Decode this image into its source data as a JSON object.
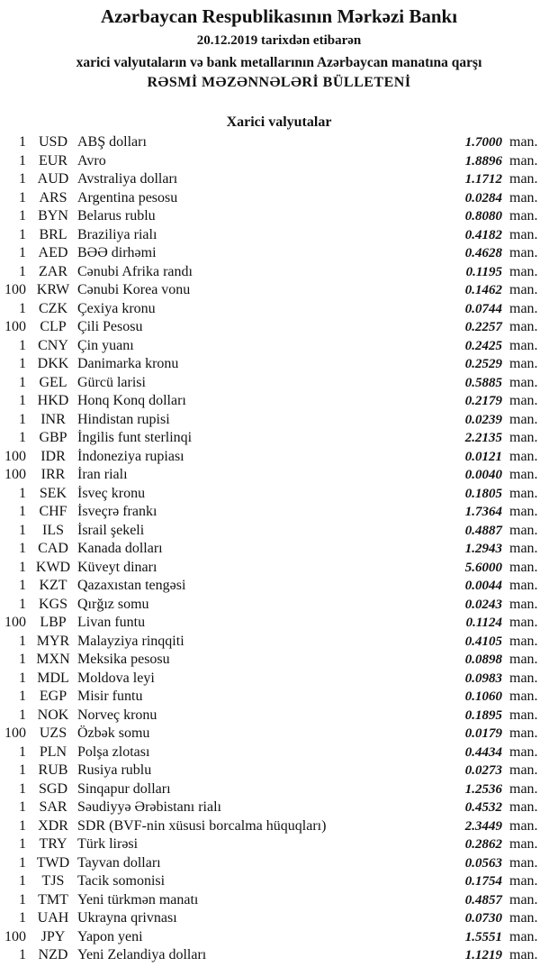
{
  "header": {
    "title": "Azərbaycan Respublikasının Mərkəzi Bankı",
    "date_line": "20.12.2019  tarixdən etibarən",
    "subtitle": "xarici valyutaların və bank metallarının Azərbaycan manatına qarşı",
    "bulletin": "RƏSMİ MƏZƏNNƏLƏRİ BÜLLETENİ"
  },
  "section": {
    "title": "Xarici valyutalar",
    "unit": "man.",
    "rows": [
      {
        "qty": "1",
        "code": "USD",
        "name": "ABŞ dolları",
        "rate": "1.7000"
      },
      {
        "qty": "1",
        "code": "EUR",
        "name": "Avro",
        "rate": "1.8896"
      },
      {
        "qty": "1",
        "code": "AUD",
        "name": "Avstraliya dolları",
        "rate": "1.1712"
      },
      {
        "qty": "1",
        "code": "ARS",
        "name": "Argentina pesosu",
        "rate": "0.0284"
      },
      {
        "qty": "1",
        "code": "BYN",
        "name": "Belarus rublu",
        "rate": "0.8080"
      },
      {
        "qty": "1",
        "code": "BRL",
        "name": "Braziliya rialı",
        "rate": "0.4182"
      },
      {
        "qty": "1",
        "code": "AED",
        "name": "BƏƏ dirhəmi",
        "rate": "0.4628"
      },
      {
        "qty": "1",
        "code": "ZAR",
        "name": "Cənubi Afrika randı",
        "rate": "0.1195"
      },
      {
        "qty": "100",
        "code": "KRW",
        "name": "Cənubi Korea vonu",
        "rate": "0.1462"
      },
      {
        "qty": "1",
        "code": "CZK",
        "name": "Çexiya kronu",
        "rate": "0.0744"
      },
      {
        "qty": "100",
        "code": "CLP",
        "name": "Çili Pesosu",
        "rate": "0.2257"
      },
      {
        "qty": "1",
        "code": "CNY",
        "name": "Çin yuanı",
        "rate": "0.2425"
      },
      {
        "qty": "1",
        "code": "DKK",
        "name": "Danimarka kronu",
        "rate": "0.2529"
      },
      {
        "qty": "1",
        "code": "GEL",
        "name": "Gürcü larisi",
        "rate": "0.5885"
      },
      {
        "qty": "1",
        "code": "HKD",
        "name": "Honq Konq dolları",
        "rate": "0.2179"
      },
      {
        "qty": "1",
        "code": "INR",
        "name": "Hindistan rupisi",
        "rate": "0.0239"
      },
      {
        "qty": "1",
        "code": "GBP",
        "name": "İngilis funt sterlinqi",
        "rate": "2.2135"
      },
      {
        "qty": "100",
        "code": "IDR",
        "name": "İndoneziya rupiası",
        "rate": "0.0121"
      },
      {
        "qty": "100",
        "code": "IRR",
        "name": "İran rialı",
        "rate": "0.0040"
      },
      {
        "qty": "1",
        "code": "SEK",
        "name": "İsveç kronu",
        "rate": "0.1805"
      },
      {
        "qty": "1",
        "code": "CHF",
        "name": "İsveçrə frankı",
        "rate": "1.7364"
      },
      {
        "qty": "1",
        "code": "ILS",
        "name": "İsrail şekeli",
        "rate": "0.4887"
      },
      {
        "qty": "1",
        "code": "CAD",
        "name": "Kanada dolları",
        "rate": "1.2943"
      },
      {
        "qty": "1",
        "code": "KWD",
        "name": "Küveyt dinarı",
        "rate": "5.6000"
      },
      {
        "qty": "1",
        "code": "KZT",
        "name": "Qazaxıstan tengəsi",
        "rate": "0.0044"
      },
      {
        "qty": "1",
        "code": "KGS",
        "name": "Qırğız somu",
        "rate": "0.0243"
      },
      {
        "qty": "100",
        "code": "LBP",
        "name": "Livan funtu",
        "rate": "0.1124"
      },
      {
        "qty": "1",
        "code": "MYR",
        "name": "Malayziya rinqqiti",
        "rate": "0.4105"
      },
      {
        "qty": "1",
        "code": "MXN",
        "name": "Meksika pesosu",
        "rate": "0.0898"
      },
      {
        "qty": "1",
        "code": "MDL",
        "name": "Moldova leyi",
        "rate": "0.0983"
      },
      {
        "qty": "1",
        "code": "EGP",
        "name": "Misir funtu",
        "rate": "0.1060"
      },
      {
        "qty": "1",
        "code": "NOK",
        "name": "Norveç kronu",
        "rate": "0.1895"
      },
      {
        "qty": "100",
        "code": "UZS",
        "name": "Özbək somu",
        "rate": "0.0179"
      },
      {
        "qty": "1",
        "code": "PLN",
        "name": "Polşa zlotası",
        "rate": "0.4434"
      },
      {
        "qty": "1",
        "code": "RUB",
        "name": "Rusiya rublu",
        "rate": "0.0273"
      },
      {
        "qty": "1",
        "code": "SGD",
        "name": "Sinqapur dolları",
        "rate": "1.2536"
      },
      {
        "qty": "1",
        "code": "SAR",
        "name": "Səudiyyə Ərəbistanı rialı",
        "rate": "0.4532"
      },
      {
        "qty": "1",
        "code": "XDR",
        "name": "SDR (BVF-nin xüsusi borcalma hüquqları)",
        "rate": "2.3449"
      },
      {
        "qty": "1",
        "code": "TRY",
        "name": "Türk lirəsi",
        "rate": "0.2862"
      },
      {
        "qty": "1",
        "code": "TWD",
        "name": "Tayvan dolları",
        "rate": "0.0563"
      },
      {
        "qty": "1",
        "code": "TJS",
        "name": "Tacik somonisi",
        "rate": "0.1754"
      },
      {
        "qty": "1",
        "code": "TMT",
        "name": "Yeni türkmən manatı",
        "rate": "0.4857"
      },
      {
        "qty": "1",
        "code": "UAH",
        "name": "Ukrayna qrivnası",
        "rate": "0.0730"
      },
      {
        "qty": "100",
        "code": "JPY",
        "name": "Yapon yeni",
        "rate": "1.5551"
      },
      {
        "qty": "1",
        "code": "NZD",
        "name": "Yeni Zelandiya dolları",
        "rate": "1.1219"
      }
    ]
  }
}
